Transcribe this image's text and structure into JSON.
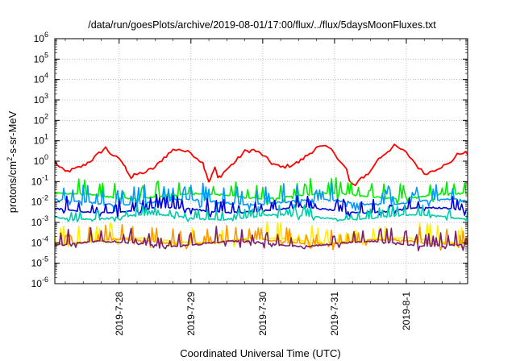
{
  "chart_data": {
    "type": "line",
    "title": "/data/run/goesPlots/archive/2019-08-01/17:00/flux/../flux/5daysMoonFluxes.txt",
    "xlabel": "Coordinated Universal Time (UTC)",
    "ylabel_prefix": "protons/cm",
    "ylabel_sup": "2",
    "ylabel_suffix": "-s-sr-MeV",
    "yscale": "log",
    "ylim": [
      1e-06,
      1000000.0
    ],
    "y_ticks": [
      {
        "base": "10",
        "exp": "-6"
      },
      {
        "base": "10",
        "exp": "-5"
      },
      {
        "base": "10",
        "exp": "-4"
      },
      {
        "base": "10",
        "exp": "-3"
      },
      {
        "base": "10",
        "exp": "-2"
      },
      {
        "base": "10",
        "exp": "-1"
      },
      {
        "base": "10",
        "exp": "0"
      },
      {
        "base": "10",
        "exp": "1"
      },
      {
        "base": "10",
        "exp": "2"
      },
      {
        "base": "10",
        "exp": "3"
      },
      {
        "base": "10",
        "exp": "4"
      },
      {
        "base": "10",
        "exp": "5"
      },
      {
        "base": "10",
        "exp": "6"
      }
    ],
    "xlim": [
      "2019-07-27 02:30",
      "2019-08-01 17:00"
    ],
    "x_ticks": [
      "2019-7-28",
      "2019-7-29",
      "2019-7-30",
      "2019-7-31",
      "2019-8-1"
    ],
    "grid": true,
    "legend": "none",
    "series_note_hours_from_2019-07-27T00:00": true,
    "series": [
      {
        "color": "#ff0000",
        "points": [
          [
            2.5,
            1.0
          ],
          [
            4,
            0.5
          ],
          [
            6,
            0.3
          ],
          [
            9,
            0.4
          ],
          [
            12,
            0.6
          ],
          [
            15,
            1.2
          ],
          [
            18,
            3.0
          ],
          [
            19.5,
            4.5
          ],
          [
            21,
            2.5
          ],
          [
            23,
            1.5
          ],
          [
            25,
            0.9
          ],
          [
            26,
            0.5
          ],
          [
            27,
            0.3
          ],
          [
            28,
            0.15
          ],
          [
            29,
            0.2
          ],
          [
            31,
            0.25
          ],
          [
            33,
            0.3
          ],
          [
            36,
            0.5
          ],
          [
            39,
            1.5
          ],
          [
            42,
            3.5
          ],
          [
            44,
            4.0
          ],
          [
            46,
            3.0
          ],
          [
            48,
            2.5
          ],
          [
            50,
            1.5
          ],
          [
            52,
            0.8
          ],
          [
            53,
            0.3
          ],
          [
            54,
            0.1
          ],
          [
            55,
            0.2
          ],
          [
            56,
            0.5
          ],
          [
            57,
            0.15
          ],
          [
            58,
            0.2
          ],
          [
            60,
            0.4
          ],
          [
            63,
            1.0
          ],
          [
            66,
            3.0
          ],
          [
            69,
            3.5
          ],
          [
            72,
            2.0
          ],
          [
            75,
            0.8
          ],
          [
            78,
            0.5
          ],
          [
            81,
            0.6
          ],
          [
            84,
            0.9
          ],
          [
            87,
            2.0
          ],
          [
            90,
            4.5
          ],
          [
            92,
            5.0
          ],
          [
            94,
            4.5
          ],
          [
            96,
            2.5
          ],
          [
            98,
            1.0
          ],
          [
            100,
            0.4
          ],
          [
            101,
            0.1
          ],
          [
            103,
            0.06
          ],
          [
            105,
            0.15
          ],
          [
            108,
            0.3
          ],
          [
            110,
            1.0
          ],
          [
            113,
            2.5
          ],
          [
            116,
            5.5
          ],
          [
            118,
            4.0
          ],
          [
            120,
            2.5
          ],
          [
            122,
            1.2
          ],
          [
            124,
            0.5
          ],
          [
            126,
            0.25
          ],
          [
            128,
            0.3
          ],
          [
            131,
            0.5
          ],
          [
            134,
            0.7
          ],
          [
            137,
            2.0
          ],
          [
            139,
            2.8
          ],
          [
            140.5,
            2.2
          ]
        ]
      },
      {
        "color": "#00ee00",
        "base": 0.02,
        "amp": 0.5,
        "phase": 0.7
      },
      {
        "color": "#0099ff",
        "base": 0.01,
        "amp": 0.6,
        "phase": 1.3
      },
      {
        "color": "#0000dd",
        "base": 0.004,
        "amp": 0.45,
        "phase": 2.1
      },
      {
        "color": "#00ccaa",
        "base": 0.0018,
        "amp": 0.35,
        "phase": 2.9
      },
      {
        "color": "#ffee00",
        "base": 0.00013,
        "amp": 0.55,
        "phase": 3.7
      },
      {
        "color": "#ff9900",
        "base": 0.00011,
        "amp": 0.5,
        "phase": 4.3
      },
      {
        "color": "#7a1f6e",
        "base": 9e-05,
        "amp": 0.5,
        "phase": 5.1
      }
    ]
  }
}
